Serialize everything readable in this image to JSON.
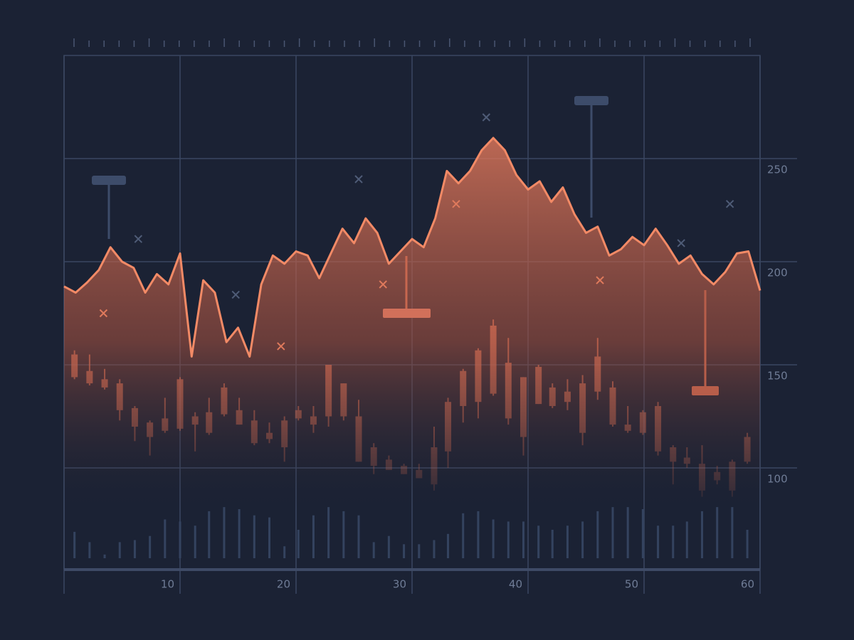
{
  "chart_data": {
    "type": "line",
    "x": [
      0,
      1,
      2,
      3,
      4,
      5,
      6,
      7,
      8,
      9,
      10,
      11,
      12,
      13,
      14,
      15,
      16,
      17,
      18,
      19,
      20,
      21,
      22,
      23,
      24,
      25,
      26,
      27,
      28,
      29,
      30,
      31,
      32,
      33,
      34,
      35,
      36,
      37,
      38,
      39,
      40,
      41,
      42,
      43,
      44,
      45,
      46,
      47,
      48,
      49,
      50,
      51,
      52,
      53,
      54,
      55,
      56,
      57,
      58,
      59,
      60
    ],
    "values": [
      188,
      185,
      190,
      196,
      207,
      200,
      197,
      185,
      194,
      189,
      204,
      154,
      191,
      185,
      161,
      168,
      154,
      189,
      203,
      199,
      205,
      203,
      192,
      204,
      216,
      209,
      221,
      214,
      199,
      205,
      211,
      207,
      221,
      244,
      238,
      244,
      254,
      260,
      254,
      242,
      235,
      239,
      229,
      236,
      223,
      214,
      217,
      203,
      206,
      212,
      208,
      216,
      208,
      199,
      203,
      194,
      189,
      195,
      204,
      205,
      186
    ],
    "color": "#f28a66",
    "area": true,
    "candlesticks": {
      "x": [
        0.9,
        2.2,
        3.5,
        4.8,
        6.1,
        7.4,
        8.7,
        10.0,
        11.3,
        12.5,
        13.8,
        15.1,
        16.4,
        17.7,
        19.0,
        20.2,
        21.5,
        22.8,
        24.1,
        25.4,
        26.7,
        28.0,
        29.3,
        30.6,
        31.9,
        33.1,
        34.4,
        35.7,
        37.0,
        38.3,
        39.6,
        40.9,
        42.1,
        43.4,
        44.7,
        46.0,
        47.3,
        48.6,
        49.9,
        51.2,
        52.5,
        53.7,
        55.0,
        56.3,
        57.6,
        58.9
      ],
      "open": [
        155,
        147,
        143,
        141,
        129,
        122,
        124,
        143,
        125,
        127,
        139,
        128,
        123,
        117,
        123,
        128,
        125,
        150,
        141,
        125,
        110,
        104,
        101,
        99,
        110,
        132,
        147,
        157,
        169,
        151,
        144,
        149,
        139,
        137,
        141,
        154,
        139,
        121,
        127,
        130,
        110,
        105,
        102,
        98,
        103,
        115
      ],
      "close": [
        144,
        141,
        139,
        128,
        120,
        115,
        118,
        119,
        121,
        117,
        126,
        121,
        112,
        114,
        110,
        124,
        121,
        125,
        125,
        103,
        101,
        99,
        97,
        95,
        92,
        108,
        130,
        132,
        136,
        124,
        115,
        131,
        130,
        132,
        117,
        137,
        121,
        118,
        117,
        108,
        103,
        102,
        89,
        94,
        89,
        103
      ],
      "high": [
        157,
        155,
        148,
        143,
        130,
        123,
        134,
        144,
        127,
        134,
        141,
        134,
        128,
        122,
        125,
        130,
        130,
        150,
        141,
        133,
        112,
        106,
        102,
        102,
        120,
        134,
        148,
        158,
        172,
        163,
        144,
        150,
        141,
        143,
        145,
        163,
        142,
        130,
        128,
        132,
        111,
        110,
        111,
        101,
        104,
        117
      ],
      "low": [
        143,
        140,
        138,
        123,
        113,
        106,
        117,
        118,
        108,
        116,
        125,
        121,
        111,
        112,
        103,
        123,
        117,
        120,
        123,
        103,
        97,
        99,
        97,
        95,
        89,
        100,
        122,
        124,
        135,
        121,
        106,
        131,
        129,
        128,
        111,
        133,
        120,
        117,
        116,
        106,
        92,
        100,
        86,
        92,
        86,
        102
      ],
      "volume": [
        69,
        64,
        58,
        64,
        65,
        67,
        75,
        74,
        72,
        79,
        81,
        80,
        77,
        76,
        62,
        70,
        77,
        81,
        79,
        77,
        64,
        67,
        63,
        63,
        65,
        68,
        78,
        79,
        75,
        74,
        74,
        72,
        70,
        72,
        74,
        79,
        81,
        81,
        80,
        72,
        72,
        74,
        79,
        81,
        81,
        70
      ],
      "color": "#c2644e",
      "volume_color": "#34435f"
    },
    "markers": [
      {
        "color": "#e07a5c",
        "x": [
          3.4,
          18.7,
          27.5,
          33.8,
          46.2
        ],
        "y": [
          175,
          159,
          189,
          228,
          191
        ]
      },
      {
        "color": "#4f5c77",
        "x": [
          6.4,
          14.8,
          25.4,
          36.4,
          53.2,
          57.4
        ],
        "y": [
          211,
          184,
          240,
          270,
          209,
          228
        ]
      }
    ],
    "xlim": [
      0,
      60
    ],
    "ylim": [
      50,
      300
    ],
    "xticks": [
      10,
      20,
      30,
      40,
      50,
      60
    ],
    "yticks": [
      100,
      150,
      200,
      250
    ],
    "grid": true
  }
}
